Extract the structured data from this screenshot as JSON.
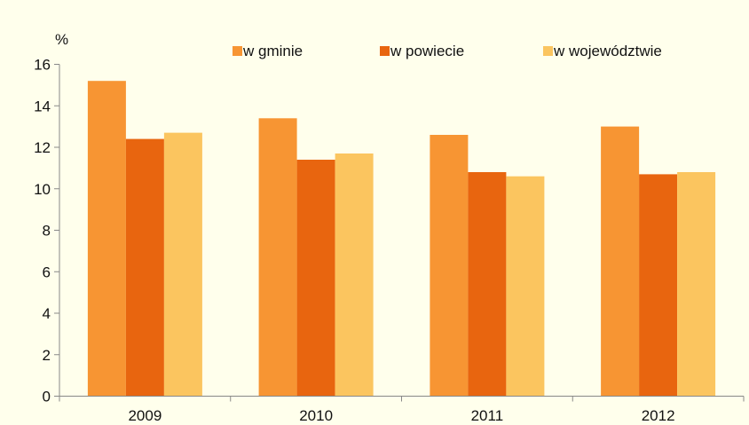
{
  "chart_data": {
    "type": "bar",
    "title": "",
    "ylabel": "%",
    "xlabel": "",
    "categories": [
      "2009",
      "2010",
      "2011",
      "2012"
    ],
    "ylim": [
      0,
      16
    ],
    "yticks": [
      0,
      2,
      4,
      6,
      8,
      10,
      12,
      14,
      16
    ],
    "grid": false,
    "legend_position": "top",
    "series": [
      {
        "name": "w gminie",
        "color": "#F79533",
        "values": [
          15.2,
          13.4,
          12.6,
          13.0
        ]
      },
      {
        "name": "w powiecie",
        "color": "#E8650F",
        "values": [
          12.4,
          11.4,
          10.8,
          10.7
        ]
      },
      {
        "name": "w województwie",
        "color": "#FBC55F",
        "values": [
          12.7,
          11.7,
          10.6,
          10.8
        ]
      }
    ],
    "plot_background": "#FFFFEC"
  }
}
